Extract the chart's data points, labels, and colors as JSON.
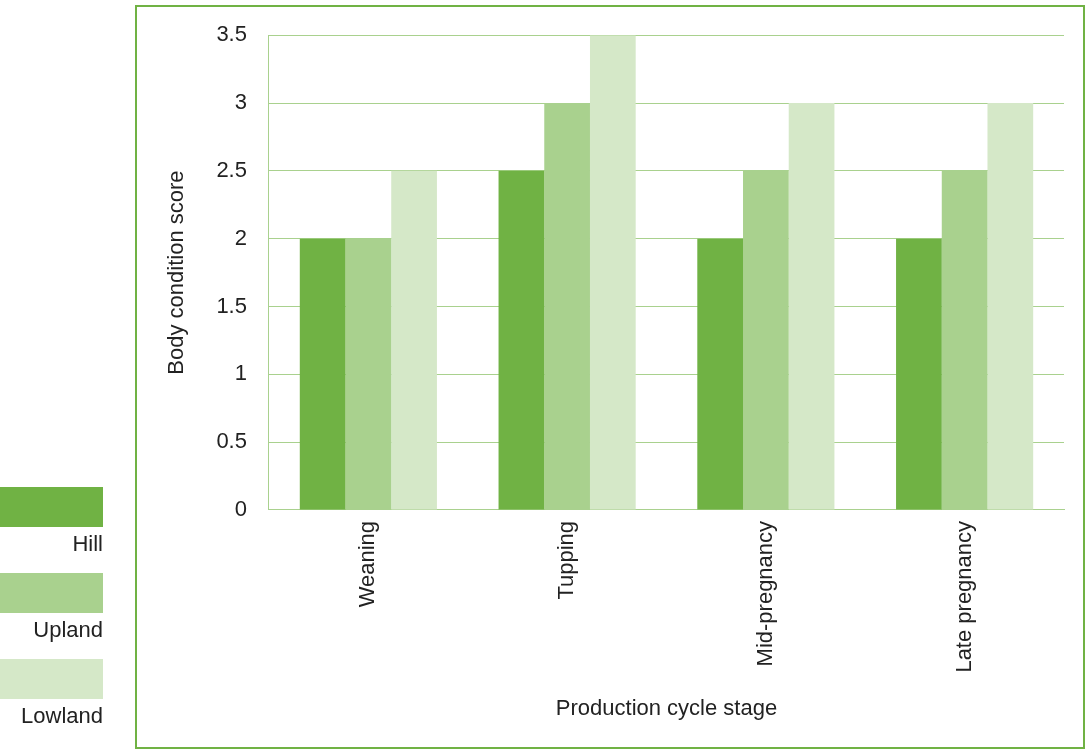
{
  "chart_data": {
    "type": "bar",
    "categories": [
      "Weaning",
      "Tupping",
      "Mid-pregnancy",
      "Late pregnancy"
    ],
    "xlabel": "Production cycle stage",
    "ylabel": "Body condition score",
    "series": [
      {
        "name": "Hill",
        "color": "#70b244",
        "values": [
          2,
          2.5,
          2,
          2
        ]
      },
      {
        "name": "Upland",
        "color": "#a9d18e",
        "values": [
          2,
          3,
          2.5,
          2.5
        ]
      },
      {
        "name": "Lowland",
        "color": "#d5e8c8",
        "values": [
          2.5,
          3.5,
          3,
          3
        ]
      }
    ],
    "ylim": [
      0,
      3.5
    ],
    "yticks": [
      0,
      0.5,
      1,
      1.5,
      2,
      2.5,
      3,
      3.5
    ],
    "grid": "y",
    "legend": "left"
  }
}
